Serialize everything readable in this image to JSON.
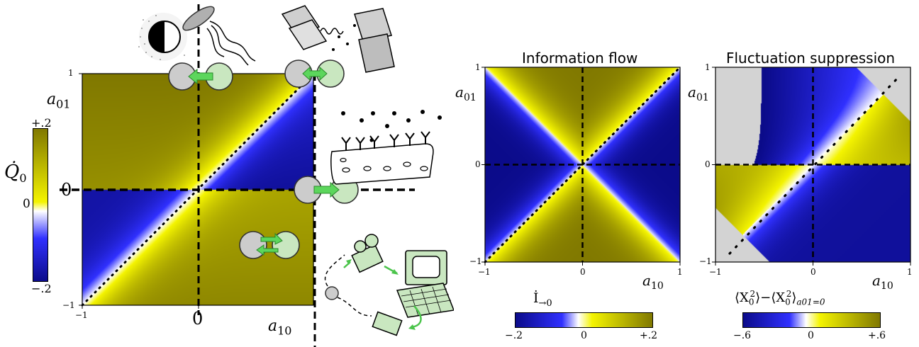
{
  "colors": {
    "negative": "#0b0b8a",
    "zero": "#ffffff",
    "midpos": "#f4f400",
    "positive": "#807800",
    "saturated": "#d3d3d3"
  },
  "panel_a": {
    "cbar_label": "Q̇",
    "cbar_label_sub": "0",
    "cbar_ticks": [
      "+.2",
      "0",
      "−.2"
    ],
    "big_zero_y": "0",
    "big_zero_x": "0",
    "tick_y_top": "1",
    "tick_y_bottom": "−1",
    "tick_x_left": "−1",
    "y_label": "a",
    "y_label_sub": "01",
    "x_label": "a",
    "x_label_sub": "10",
    "icons": [
      "light-sensitive-cell-icon",
      "bacterium-icon",
      "coupled-plates-icon",
      "receptor-cell-icon",
      "camera-icon",
      "computer-icon",
      "robot-camera-icon"
    ]
  },
  "panel_b": {
    "title": "Information flow",
    "tick_y_top": "1",
    "tick_y_mid": "0",
    "tick_y_bottom": "−1",
    "tick_x_left": "−1",
    "tick_x_mid": "0",
    "tick_x_right": "1",
    "y_label": "a",
    "y_label_sub": "01",
    "x_label": "a",
    "x_label_sub": "10",
    "cbar_label": "İ",
    "cbar_label_sub": "→0",
    "cbar_ticks": [
      "−.2",
      "0",
      "+.2"
    ]
  },
  "panel_c": {
    "title": "Fluctuation suppression",
    "tick_y_top": "1",
    "tick_y_mid": "0",
    "tick_y_bottom": "−1",
    "tick_x_left": "−1",
    "tick_x_mid": "0",
    "tick_x_right": "1",
    "y_label": "a",
    "y_label_sub": "01",
    "x_label": "a",
    "x_label_sub": "10",
    "cbar_label_a": "⟨X",
    "cbar_label_b": "⟩−⟨X",
    "cbar_label_c": "⟩",
    "cbar_sup": "2",
    "cbar_sub0": "0",
    "cbar_sub_cond": "a01=0",
    "cbar_ticks": [
      "−.6",
      "0",
      "+.6"
    ]
  }
}
